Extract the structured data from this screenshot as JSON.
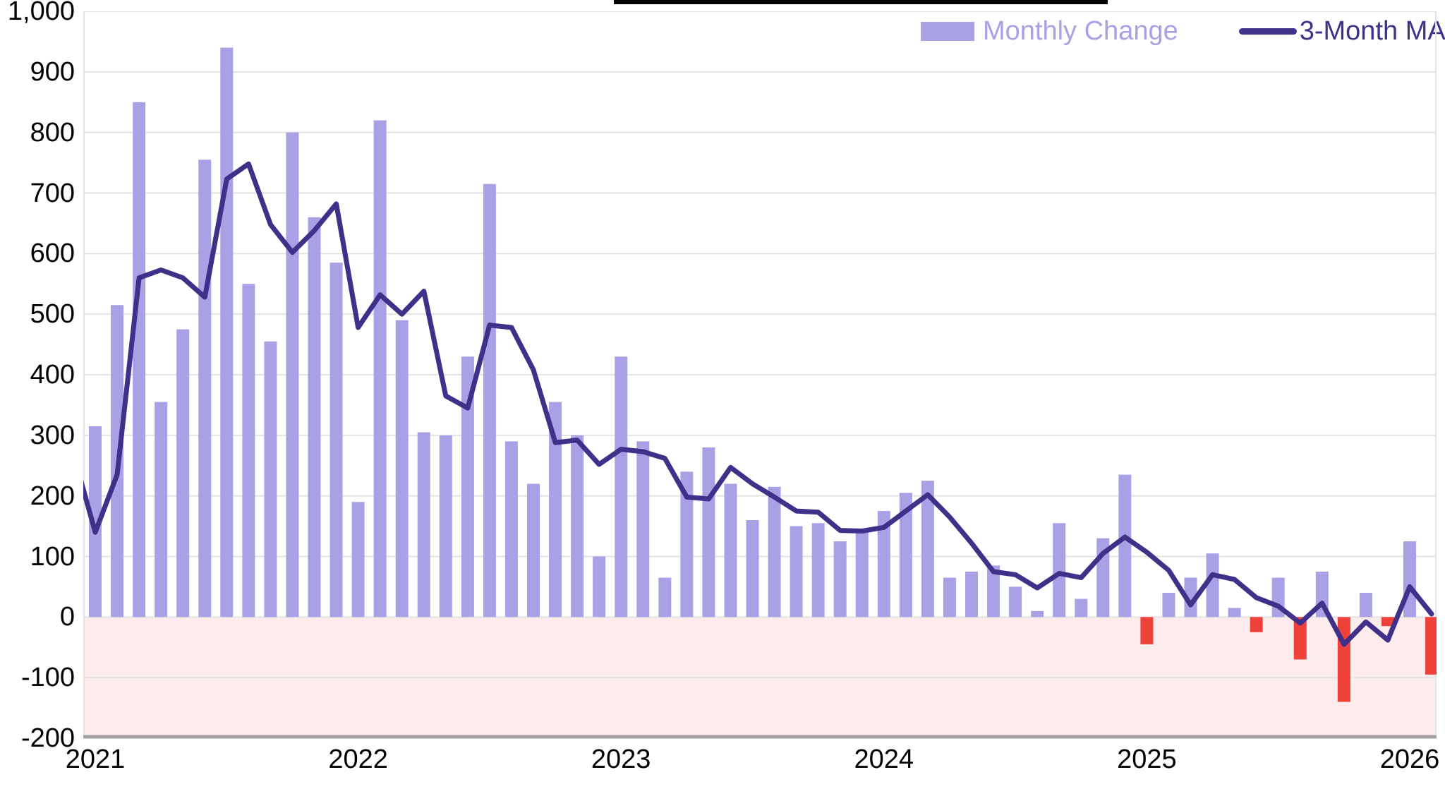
{
  "chart_data": {
    "type": "bar+line",
    "title": "",
    "x": [
      "2021-01",
      "2021-02",
      "2021-03",
      "2021-04",
      "2021-05",
      "2021-06",
      "2021-07",
      "2021-08",
      "2021-09",
      "2021-10",
      "2021-11",
      "2021-12",
      "2022-01",
      "2022-02",
      "2022-03",
      "2022-04",
      "2022-05",
      "2022-06",
      "2022-07",
      "2022-08",
      "2022-09",
      "2022-10",
      "2022-11",
      "2022-12",
      "2023-01",
      "2023-02",
      "2023-03",
      "2023-04",
      "2023-05",
      "2023-06",
      "2023-07",
      "2023-08",
      "2023-09",
      "2023-10",
      "2023-11",
      "2023-12",
      "2024-01",
      "2024-02",
      "2024-03",
      "2024-04",
      "2024-05",
      "2024-06",
      "2024-07",
      "2024-08",
      "2024-09",
      "2024-10",
      "2024-11",
      "2024-12",
      "2025-01",
      "2025-02",
      "2025-03",
      "2025-04",
      "2025-05",
      "2025-06",
      "2025-07",
      "2025-08",
      "2025-09",
      "2025-10",
      "2025-11",
      "2025-12",
      "2026-01",
      "2026-02"
    ],
    "series": [
      {
        "name": "Monthly Change",
        "type": "bar",
        "color_positive": "#a9a1e6",
        "color_negative": "#ee4139",
        "values": [
          315,
          515,
          850,
          355,
          475,
          755,
          940,
          550,
          455,
          800,
          660,
          585,
          190,
          820,
          490,
          305,
          300,
          430,
          715,
          290,
          220,
          355,
          300,
          100,
          430,
          290,
          65,
          240,
          280,
          220,
          160,
          215,
          150,
          155,
          125,
          145,
          175,
          205,
          225,
          65,
          75,
          85,
          50,
          10,
          155,
          30,
          130,
          235,
          -45,
          40,
          65,
          105,
          15,
          -25,
          65,
          -70,
          75,
          -140,
          40,
          -15,
          125,
          -95
        ]
      },
      {
        "name": "3-Month MA",
        "type": "line",
        "color": "#41308a",
        "lead_in_value": 270,
        "values": [
          140,
          235,
          560,
          573,
          560,
          528,
          723,
          748,
          648,
          602,
          638,
          682,
          478,
          532,
          500,
          538,
          365,
          345,
          482,
          478,
          408,
          288,
          292,
          252,
          277,
          273,
          262,
          198,
          195,
          247,
          220,
          198,
          175,
          173,
          143,
          142,
          148,
          175,
          202,
          165,
          122,
          75,
          70,
          48,
          72,
          65,
          105,
          132,
          107,
          77,
          20,
          70,
          62,
          32,
          18,
          -10,
          23,
          -45,
          -8,
          -38,
          50,
          5
        ]
      }
    ],
    "ylim": [
      -200,
      1000
    ],
    "y_ticks": [
      {
        "label": "1,000",
        "value": 1000
      },
      {
        "label": "900",
        "value": 900
      },
      {
        "label": "800",
        "value": 800
      },
      {
        "label": "700",
        "value": 700
      },
      {
        "label": "600",
        "value": 600
      },
      {
        "label": "500",
        "value": 500
      },
      {
        "label": "400",
        "value": 400
      },
      {
        "label": "300",
        "value": 300
      },
      {
        "label": "200",
        "value": 200
      },
      {
        "label": "100",
        "value": 100
      },
      {
        "label": "0",
        "value": 0
      },
      {
        "label": "-100",
        "value": -100
      },
      {
        "label": "-200",
        "value": -200
      }
    ],
    "x_year_labels": [
      {
        "label": "2021",
        "month_index": 0
      },
      {
        "label": "2022",
        "month_index": 12
      },
      {
        "label": "2023",
        "month_index": 24
      },
      {
        "label": "2024",
        "month_index": 36
      },
      {
        "label": "2025",
        "month_index": 48
      },
      {
        "label": "2026",
        "month_index": 60
      }
    ],
    "grid": true,
    "legend_position": "top-right",
    "negative_zone_color": "#fdeceb",
    "gridline_color": "#e3e3e3",
    "axis_line_color": "#a3a3a3"
  },
  "legend": {
    "items": [
      {
        "label": "Monthly Change",
        "color": "#a9a1e6",
        "swatch": "bar"
      },
      {
        "label": "3-Month MA",
        "color": "#41308a",
        "swatch": "line"
      }
    ]
  },
  "colors": {
    "bar_positive": "#a9a1e6",
    "bar_negative": "#ee4139",
    "ma_line": "#41308a",
    "negative_zone": "#fdeceb",
    "gridline": "#e3e3e3",
    "axis_line": "#a3a3a3",
    "tick_text": "#000000",
    "title_underline": "#000000"
  }
}
